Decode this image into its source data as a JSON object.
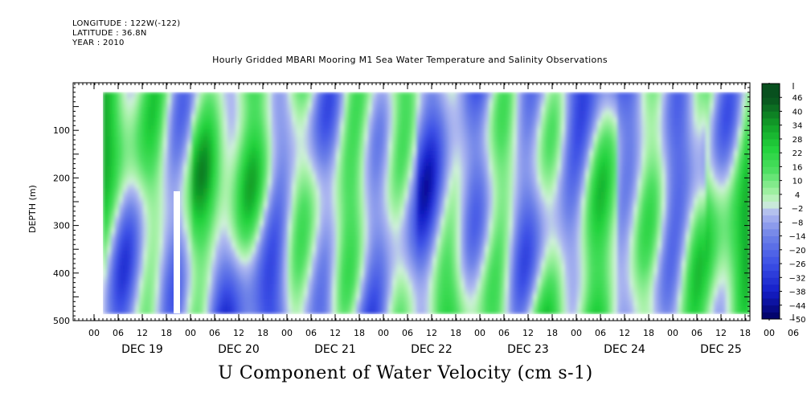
{
  "header": {
    "longitude": "LONGITUDE : 122W(-122)",
    "latitude": "LATITUDE : 36.8N",
    "year": "YEAR : 2010"
  },
  "title": "Hourly Gridded MBARI Mooring M1 Sea Water Temperature and Salinity Observations",
  "footer": "U Component of Water Velocity (cm s-1)",
  "colors": {
    "strong_positive": "#0a4a1a",
    "positive": "#22d23c",
    "weak_positive": "#a8f0a8",
    "weak_negative": "#aab4f0",
    "negative": "#6878e8",
    "strong_negative": "#000060"
  },
  "chart_data": {
    "type": "heatmap",
    "ylabel": "DEPTH (m)",
    "ylim": [
      500,
      0
    ],
    "y_ticks": [
      100,
      200,
      300,
      400,
      500
    ],
    "x_hour_ticks": [
      "00",
      "06",
      "12",
      "18",
      "00",
      "06",
      "12",
      "18",
      "00",
      "06",
      "12",
      "18",
      "00",
      "06",
      "12",
      "18",
      "00",
      "06",
      "12",
      "18",
      "00",
      "06",
      "12",
      "18",
      "00",
      "06",
      "12",
      "18",
      "00",
      "06",
      "12",
      "18"
    ],
    "x_day_labels": [
      "DEC 19",
      "DEC 20",
      "DEC 21",
      "DEC 22",
      "DEC 23",
      "DEC 24",
      "DEC 25"
    ],
    "colorbar": {
      "labels": [
        "46",
        "40",
        "34",
        "28",
        "22",
        "16",
        "10",
        "4",
        "-2",
        "-8",
        "-14",
        "-20",
        "-26",
        "-32",
        "-38",
        "-44",
        "-50"
      ],
      "range": [
        -50,
        52
      ]
    },
    "data_depth_range": [
      20,
      485
    ]
  }
}
